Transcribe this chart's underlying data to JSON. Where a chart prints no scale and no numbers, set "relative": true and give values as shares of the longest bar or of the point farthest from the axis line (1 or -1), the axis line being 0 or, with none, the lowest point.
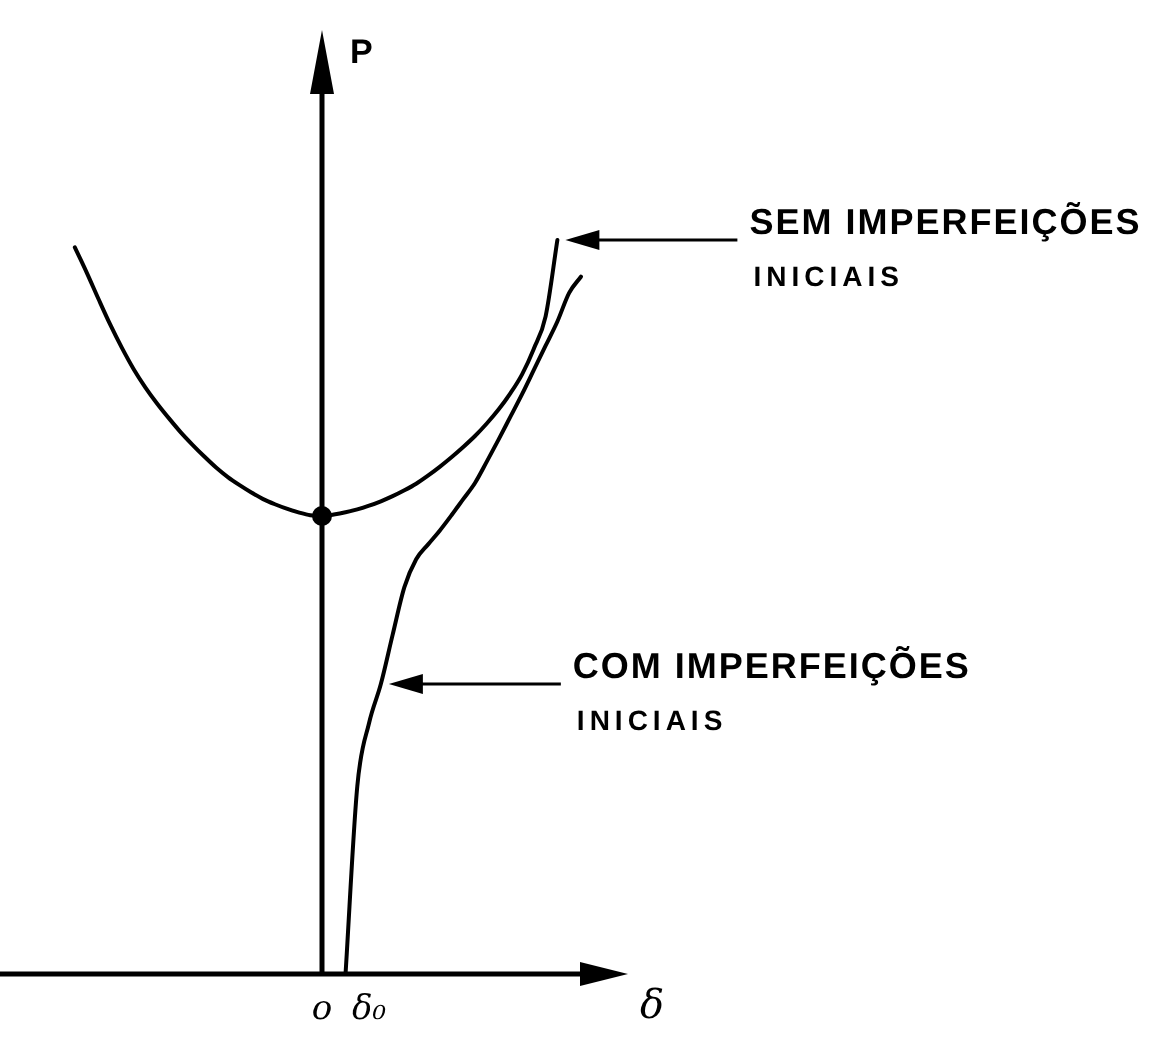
{
  "chart_data": {
    "type": "line",
    "relative": true,
    "xlabel": "δ",
    "ylabel": "P",
    "marker": "none",
    "legend": "right",
    "categories": [
      null,
      null,
      null,
      null,
      null,
      null,
      null,
      null,
      null,
      null,
      null,
      null,
      null,
      null,
      null,
      null,
      null,
      null,
      null,
      null,
      null,
      null,
      null,
      null,
      null,
      null,
      "o",
      null,
      null,
      null,
      "δ₀",
      null,
      null,
      null,
      null,
      null,
      null,
      null,
      null,
      null,
      null,
      null,
      null,
      null,
      null,
      null,
      null,
      null,
      null,
      null,
      null,
      null,
      null
    ],
    "series": [
      {
        "name": "SEM IMPERFEIÇÕES INICIAIS",
        "color": "#000000",
        "values": [
          null,
          null,
          null,
          null,
          null,
          0.99,
          0.956,
          0.92,
          0.885,
          0.853,
          0.824,
          0.799,
          0.777,
          0.757,
          0.738,
          0.721,
          0.705,
          0.69,
          0.677,
          0.666,
          0.656,
          0.647,
          0.64,
          0.634,
          0.629,
          0.625,
          0.624,
          0.626,
          0.629,
          0.633,
          0.638,
          0.644,
          0.651,
          0.659,
          0.668,
          0.679,
          0.691,
          0.704,
          0.718,
          0.733,
          0.75,
          0.769,
          0.791,
          0.817,
          0.852,
          0.896,
          1,
          null,
          null,
          null,
          null,
          null,
          null
        ]
      },
      {
        "name": "COM IMPERFEIÇÕES INICIAIS",
        "color": "#000000",
        "values": [
          null,
          null,
          null,
          null,
          null,
          null,
          null,
          null,
          null,
          null,
          null,
          null,
          null,
          null,
          null,
          null,
          null,
          null,
          null,
          null,
          null,
          null,
          null,
          null,
          null,
          null,
          null,
          null,
          0,
          0.256,
          0.342,
          0.395,
          0.462,
          0.527,
          0.565,
          0.585,
          0.604,
          0.625,
          0.647,
          0.669,
          0.698,
          0.728,
          0.759,
          0.79,
          0.823,
          0.856,
          0.889,
          0.928,
          0.95,
          null,
          null,
          null,
          null
        ]
      },
      {
        "type": "scatter",
        "marker": "circle",
        "color": "#000000",
        "values": [
          null,
          null,
          null,
          null,
          null,
          null,
          null,
          null,
          null,
          null,
          null,
          null,
          null,
          null,
          null,
          null,
          null,
          null,
          null,
          null,
          null,
          null,
          null,
          null,
          null,
          null,
          0.624,
          null,
          null,
          null,
          null,
          null,
          null,
          null,
          null,
          null,
          null,
          null,
          null,
          null,
          null,
          null,
          null,
          null,
          null,
          null,
          null,
          null,
          null,
          null,
          null,
          null,
          null
        ]
      }
    ]
  }
}
